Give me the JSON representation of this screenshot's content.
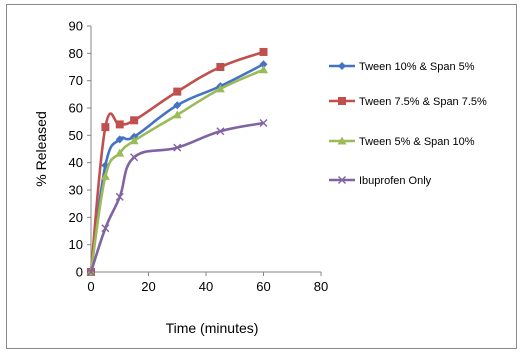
{
  "chart_data": {
    "type": "line",
    "title": "",
    "xlabel": "Time (minutes)",
    "ylabel": "% Released",
    "xlim": [
      0,
      80
    ],
    "ylim": [
      0,
      90
    ],
    "xticks": [
      0,
      20,
      40,
      60,
      80
    ],
    "yticks": [
      0,
      10,
      20,
      30,
      40,
      50,
      60,
      70,
      80,
      90
    ],
    "grid": false,
    "legend_position": "right",
    "series": [
      {
        "name": "Tween 10% & Span 5%",
        "color": "#4472C4",
        "marker": "diamond",
        "smooth": true,
        "x": [
          0,
          5,
          10,
          15,
          30,
          45,
          60
        ],
        "y": [
          0,
          39,
          48.5,
          49.5,
          61,
          68,
          76
        ]
      },
      {
        "name": "Tween 7.5% & Span 7.5%",
        "color": "#C0504D",
        "marker": "square",
        "smooth": true,
        "x": [
          0,
          5,
          10,
          15,
          30,
          45,
          60
        ],
        "y": [
          0,
          53,
          54,
          55.5,
          66,
          75,
          80.5
        ]
      },
      {
        "name": "Tween 5% & Span 10%",
        "color": "#9BBB59",
        "marker": "triangle",
        "smooth": true,
        "x": [
          0,
          5,
          10,
          15,
          30,
          45,
          60
        ],
        "y": [
          0,
          35,
          43.5,
          48,
          57.5,
          67,
          74
        ]
      },
      {
        "name": "Ibuprofen Only",
        "color": "#8064A2",
        "marker": "x",
        "smooth": true,
        "x": [
          0,
          5,
          10,
          15,
          30,
          45,
          60
        ],
        "y": [
          0,
          16,
          27.5,
          42,
          45.5,
          51.5,
          54.5
        ]
      }
    ]
  }
}
